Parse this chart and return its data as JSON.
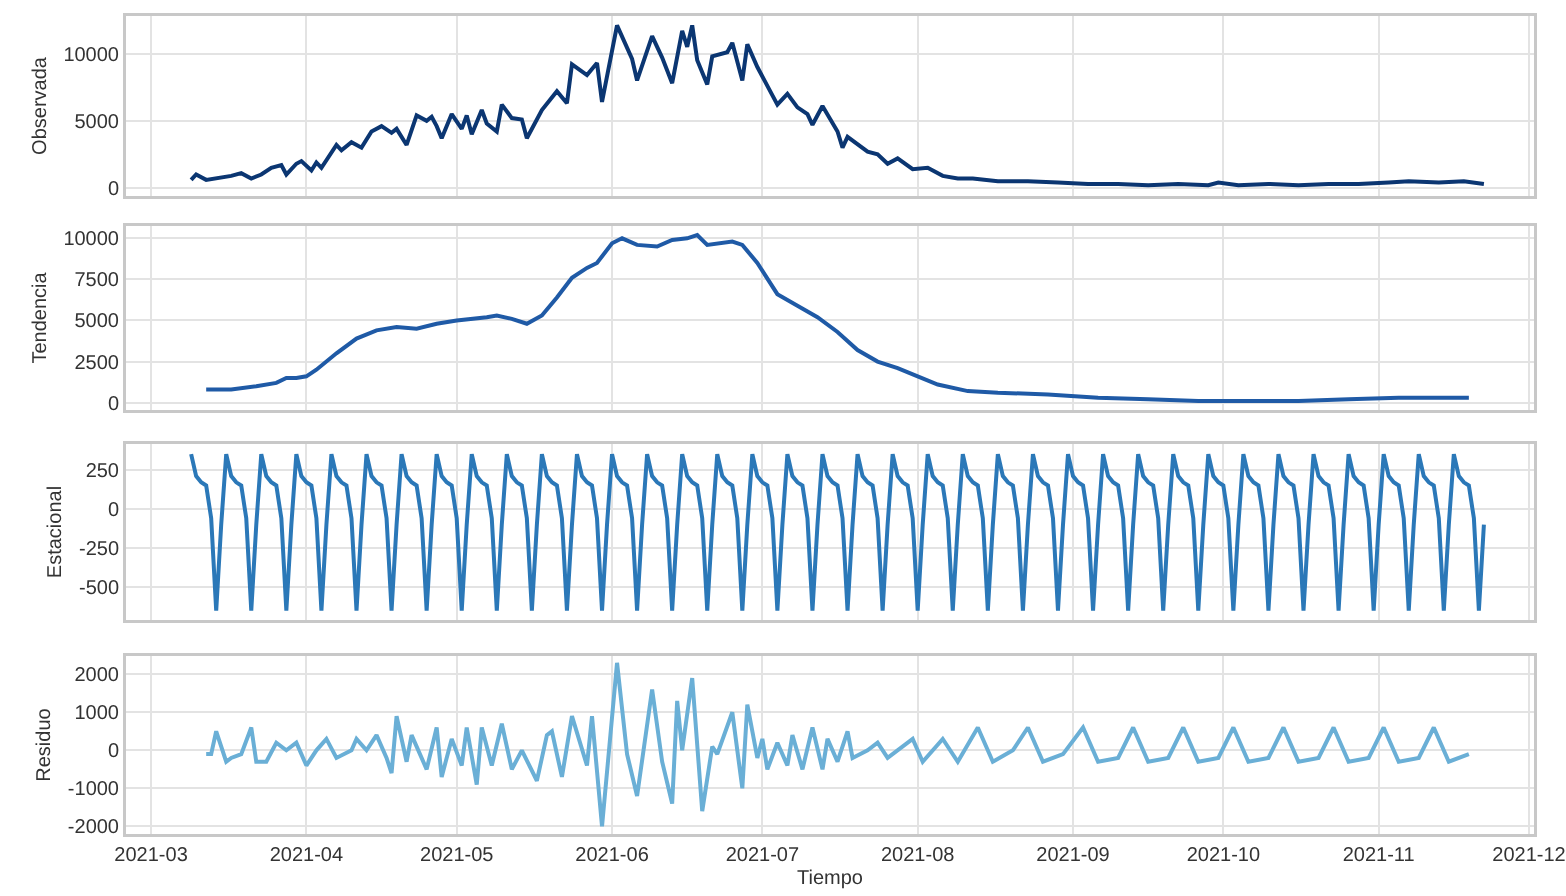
{
  "chart_data": [
    {
      "type": "line",
      "ylabel": "Observada",
      "xlim": [
        "2021-02-24",
        "2021-12-02"
      ],
      "xticks": [
        {
          "value": "2021-03-01",
          "label": null
        },
        {
          "value": "2021-04-01",
          "label": null
        },
        {
          "value": "2021-05-01",
          "label": null
        },
        {
          "value": "2021-06-01",
          "label": null
        },
        {
          "value": "2021-07-01",
          "label": null
        },
        {
          "value": "2021-08-01",
          "label": null
        },
        {
          "value": "2021-09-01",
          "label": null
        },
        {
          "value": "2021-10-01",
          "label": null
        },
        {
          "value": "2021-11-01",
          "label": null
        },
        {
          "value": "2021-12-01",
          "label": null
        }
      ],
      "ylim": [
        -600,
        12800
      ],
      "yticks": [
        0,
        5000,
        10000
      ],
      "grid": true,
      "tick_labels": "y",
      "series": [
        {
          "color": "#0b3672",
          "x": [
            "2021-03-09",
            "2021-03-10",
            "2021-03-12",
            "2021-03-17",
            "2021-03-19",
            "2021-03-21",
            "2021-03-23",
            "2021-03-25",
            "2021-03-27",
            "2021-03-28",
            "2021-03-30",
            "2021-03-31",
            "2021-04-02",
            "2021-04-03",
            "2021-04-04",
            "2021-04-07",
            "2021-04-08",
            "2021-04-10",
            "2021-04-12",
            "2021-04-14",
            "2021-04-16",
            "2021-04-18",
            "2021-04-19",
            "2021-04-21",
            "2021-04-23",
            "2021-04-25",
            "2021-04-26",
            "2021-04-27",
            "2021-04-28",
            "2021-04-30",
            "2021-05-02",
            "2021-05-03",
            "2021-05-04",
            "2021-05-06",
            "2021-05-07",
            "2021-05-09",
            "2021-05-10",
            "2021-05-12",
            "2021-05-14",
            "2021-05-15",
            "2021-05-18",
            "2021-05-21",
            "2021-05-23",
            "2021-05-24",
            "2021-05-27",
            "2021-05-29",
            "2021-05-30",
            "2021-06-02",
            "2021-06-05",
            "2021-06-06",
            "2021-06-09",
            "2021-06-11",
            "2021-06-13",
            "2021-06-15",
            "2021-06-16",
            "2021-06-17",
            "2021-06-18",
            "2021-06-20",
            "2021-06-21",
            "2021-06-24",
            "2021-06-25",
            "2021-06-27",
            "2021-06-28",
            "2021-06-30",
            "2021-07-02",
            "2021-07-04",
            "2021-07-06",
            "2021-07-08",
            "2021-07-10",
            "2021-07-11",
            "2021-07-13",
            "2021-07-16",
            "2021-07-17",
            "2021-07-18",
            "2021-07-22",
            "2021-07-24",
            "2021-07-26",
            "2021-07-28",
            "2021-07-31",
            "2021-08-03",
            "2021-08-06",
            "2021-08-09",
            "2021-08-12",
            "2021-08-17",
            "2021-08-23",
            "2021-08-29",
            "2021-09-04",
            "2021-09-10",
            "2021-09-16",
            "2021-09-22",
            "2021-09-28",
            "2021-09-30",
            "2021-10-04",
            "2021-10-10",
            "2021-10-16",
            "2021-10-22",
            "2021-10-28",
            "2021-11-03",
            "2021-11-07",
            "2021-11-13",
            "2021-11-18",
            "2021-11-22"
          ],
          "values": [
            600,
            1000,
            600,
            900,
            1100,
            700,
            1000,
            1500,
            1700,
            1000,
            1800,
            2000,
            1300,
            1900,
            1500,
            3200,
            2800,
            3400,
            3000,
            4200,
            4600,
            4100,
            4400,
            3200,
            5400,
            5000,
            5300,
            4600,
            3700,
            5500,
            4400,
            5400,
            4000,
            5800,
            4800,
            4200,
            6200,
            5200,
            5100,
            3700,
            5800,
            7200,
            6300,
            9200,
            8400,
            9300,
            6400,
            12100,
            9600,
            8000,
            11300,
            9700,
            7800,
            11700,
            10500,
            12100,
            9500,
            7700,
            9800,
            10100,
            10800,
            8000,
            10700,
            9000,
            7600,
            6200,
            7000,
            6000,
            5500,
            4700,
            6100,
            4200,
            3000,
            3800,
            2700,
            2500,
            1800,
            2200,
            1400,
            1500,
            900,
            700,
            700,
            500,
            500,
            400,
            300,
            300,
            200,
            300,
            200,
            400,
            200,
            300,
            200,
            300,
            300,
            400,
            500,
            400,
            500,
            300
          ]
        }
      ]
    },
    {
      "type": "line",
      "ylabel": "Tendencia",
      "xlim": [
        "2021-02-24",
        "2021-12-02"
      ],
      "xticks": [
        {
          "value": "2021-03-01",
          "label": null
        },
        {
          "value": "2021-04-01",
          "label": null
        },
        {
          "value": "2021-05-01",
          "label": null
        },
        {
          "value": "2021-06-01",
          "label": null
        },
        {
          "value": "2021-07-01",
          "label": null
        },
        {
          "value": "2021-08-01",
          "label": null
        },
        {
          "value": "2021-09-01",
          "label": null
        },
        {
          "value": "2021-10-01",
          "label": null
        },
        {
          "value": "2021-11-01",
          "label": null
        },
        {
          "value": "2021-12-01",
          "label": null
        }
      ],
      "ylim": [
        -450,
        10750
      ],
      "yticks": [
        0,
        2500,
        5000,
        7500,
        10000
      ],
      "grid": true,
      "tick_labels": "y",
      "series": [
        {
          "color": "#1f5aa6",
          "x": [
            "2021-03-12",
            "2021-03-17",
            "2021-03-22",
            "2021-03-26",
            "2021-03-28",
            "2021-03-30",
            "2021-04-01",
            "2021-04-03",
            "2021-04-07",
            "2021-04-11",
            "2021-04-15",
            "2021-04-19",
            "2021-04-23",
            "2021-04-27",
            "2021-05-01",
            "2021-05-07",
            "2021-05-09",
            "2021-05-12",
            "2021-05-15",
            "2021-05-18",
            "2021-05-21",
            "2021-05-24",
            "2021-05-27",
            "2021-05-29",
            "2021-06-01",
            "2021-06-03",
            "2021-06-06",
            "2021-06-10",
            "2021-06-13",
            "2021-06-16",
            "2021-06-18",
            "2021-06-20",
            "2021-06-25",
            "2021-06-27",
            "2021-06-30",
            "2021-07-04",
            "2021-07-08",
            "2021-07-12",
            "2021-07-16",
            "2021-07-20",
            "2021-07-24",
            "2021-07-28",
            "2021-08-01",
            "2021-08-05",
            "2021-08-11",
            "2021-08-17",
            "2021-08-27",
            "2021-09-06",
            "2021-09-16",
            "2021-09-26",
            "2021-10-06",
            "2021-10-16",
            "2021-10-26",
            "2021-11-05",
            "2021-11-09",
            "2021-11-13",
            "2021-11-19"
          ],
          "values": [
            800,
            800,
            1000,
            1200,
            1500,
            1500,
            1600,
            2000,
            3000,
            3900,
            4400,
            4600,
            4500,
            4800,
            5000,
            5200,
            5300,
            5100,
            4800,
            5300,
            6400,
            7600,
            8200,
            8500,
            9700,
            10000,
            9600,
            9500,
            9900,
            10000,
            10200,
            9600,
            9800,
            9600,
            8500,
            6600,
            5900,
            5200,
            4300,
            3200,
            2500,
            2100,
            1600,
            1100,
            700,
            600,
            500,
            300,
            200,
            100,
            100,
            100,
            200,
            300,
            300,
            300,
            300
          ]
        }
      ]
    },
    {
      "type": "line",
      "ylabel": "Estacional",
      "xlim": [
        "2021-02-24",
        "2021-12-02"
      ],
      "xticks": [
        {
          "value": "2021-03-01",
          "label": null
        },
        {
          "value": "2021-04-01",
          "label": null
        },
        {
          "value": "2021-05-01",
          "label": null
        },
        {
          "value": "2021-06-01",
          "label": null
        },
        {
          "value": "2021-07-01",
          "label": null
        },
        {
          "value": "2021-08-01",
          "label": null
        },
        {
          "value": "2021-09-01",
          "label": null
        },
        {
          "value": "2021-10-01",
          "label": null
        },
        {
          "value": "2021-11-01",
          "label": null
        },
        {
          "value": "2021-12-01",
          "label": null
        }
      ],
      "ylim": [
        -710,
        415
      ],
      "yticks": [
        -500,
        -250,
        0,
        250
      ],
      "grid": true,
      "tick_labels": "y",
      "series": [
        {
          "color": "#2b78b8",
          "x": [
            "2021-03-09",
            "2021-03-10",
            "2021-03-11",
            "2021-03-12",
            "2021-03-13",
            "2021-03-14",
            "2021-03-15",
            "2021-03-16",
            "2021-03-17",
            "2021-03-18",
            "2021-03-19",
            "2021-03-20",
            "2021-03-21",
            "2021-03-22",
            "2021-03-23",
            "2021-03-24",
            "2021-03-25",
            "2021-03-26",
            "2021-03-27",
            "2021-03-28",
            "2021-03-29",
            "2021-03-30",
            "2021-03-31",
            "2021-04-01",
            "2021-04-02",
            "2021-04-03",
            "2021-04-04",
            "2021-04-05",
            "2021-04-06",
            "2021-04-07",
            "2021-04-08",
            "2021-04-09",
            "2021-04-10",
            "2021-04-11",
            "2021-04-12",
            "2021-04-13",
            "2021-04-14",
            "2021-04-15",
            "2021-04-16",
            "2021-04-17",
            "2021-04-18",
            "2021-04-19",
            "2021-04-20",
            "2021-04-21",
            "2021-04-22",
            "2021-04-23",
            "2021-04-24",
            "2021-04-25",
            "2021-04-26",
            "2021-04-27",
            "2021-04-28",
            "2021-04-29",
            "2021-04-30",
            "2021-05-01",
            "2021-05-02",
            "2021-05-03",
            "2021-05-04",
            "2021-05-05",
            "2021-05-06",
            "2021-05-07",
            "2021-05-08",
            "2021-05-09",
            "2021-05-10",
            "2021-05-11",
            "2021-05-12",
            "2021-05-13",
            "2021-05-14",
            "2021-05-15",
            "2021-05-16",
            "2021-05-17",
            "2021-05-18",
            "2021-05-19",
            "2021-05-20",
            "2021-05-21",
            "2021-05-22",
            "2021-05-23",
            "2021-05-24",
            "2021-05-25",
            "2021-05-26",
            "2021-05-27",
            "2021-05-28",
            "2021-05-29",
            "2021-05-30",
            "2021-05-31",
            "2021-06-01",
            "2021-06-02",
            "2021-06-03",
            "2021-06-04",
            "2021-06-05",
            "2021-06-06",
            "2021-06-07",
            "2021-06-08",
            "2021-06-09",
            "2021-06-10",
            "2021-06-11",
            "2021-06-12",
            "2021-06-13",
            "2021-06-14",
            "2021-06-15",
            "2021-06-16",
            "2021-06-17",
            "2021-06-18",
            "2021-06-19",
            "2021-06-20",
            "2021-06-21",
            "2021-06-22",
            "2021-06-23",
            "2021-06-24",
            "2021-06-25",
            "2021-06-26",
            "2021-06-27",
            "2021-06-28",
            "2021-06-29",
            "2021-06-30",
            "2021-07-01",
            "2021-07-02",
            "2021-07-03",
            "2021-07-04",
            "2021-07-05",
            "2021-07-06",
            "2021-07-07",
            "2021-07-08",
            "2021-07-09",
            "2021-07-10",
            "2021-07-11",
            "2021-07-12",
            "2021-07-13",
            "2021-07-14",
            "2021-07-15",
            "2021-07-16",
            "2021-07-17",
            "2021-07-18",
            "2021-07-19",
            "2021-07-20",
            "2021-07-21",
            "2021-07-22",
            "2021-07-23",
            "2021-07-24",
            "2021-07-25",
            "2021-07-26",
            "2021-07-27",
            "2021-07-28",
            "2021-07-29",
            "2021-07-30",
            "2021-07-31",
            "2021-08-01",
            "2021-08-02",
            "2021-08-03",
            "2021-08-04",
            "2021-08-05",
            "2021-08-06",
            "2021-08-07",
            "2021-08-08",
            "2021-08-09",
            "2021-08-10",
            "2021-08-11",
            "2021-08-12",
            "2021-08-13",
            "2021-08-14",
            "2021-08-15",
            "2021-08-16",
            "2021-08-17",
            "2021-08-18",
            "2021-08-19",
            "2021-08-20",
            "2021-08-21",
            "2021-08-22",
            "2021-08-23",
            "2021-08-24",
            "2021-08-25",
            "2021-08-26",
            "2021-08-27",
            "2021-08-28",
            "2021-08-29",
            "2021-08-30",
            "2021-08-31",
            "2021-09-01",
            "2021-09-02",
            "2021-09-03",
            "2021-09-04",
            "2021-09-05",
            "2021-09-06",
            "2021-09-07",
            "2021-09-08",
            "2021-09-09",
            "2021-09-10",
            "2021-09-11",
            "2021-09-12",
            "2021-09-13",
            "2021-09-14",
            "2021-09-15",
            "2021-09-16",
            "2021-09-17",
            "2021-09-18",
            "2021-09-19",
            "2021-09-20",
            "2021-09-21",
            "2021-09-22",
            "2021-09-23",
            "2021-09-24",
            "2021-09-25",
            "2021-09-26",
            "2021-09-27",
            "2021-09-28",
            "2021-09-29",
            "2021-09-30",
            "2021-10-01",
            "2021-10-02",
            "2021-10-03",
            "2021-10-04",
            "2021-10-05",
            "2021-10-06",
            "2021-10-07",
            "2021-10-08",
            "2021-10-09",
            "2021-10-10",
            "2021-10-11",
            "2021-10-12",
            "2021-10-13",
            "2021-10-14",
            "2021-10-15",
            "2021-10-16",
            "2021-10-17",
            "2021-10-18",
            "2021-10-19",
            "2021-10-20",
            "2021-10-21",
            "2021-10-22",
            "2021-10-23",
            "2021-10-24",
            "2021-10-25",
            "2021-10-26",
            "2021-10-27",
            "2021-10-28",
            "2021-10-29",
            "2021-10-30",
            "2021-10-31",
            "2021-11-01",
            "2021-11-02",
            "2021-11-03",
            "2021-11-04",
            "2021-11-05",
            "2021-11-06",
            "2021-11-07",
            "2021-11-08",
            "2021-11-09",
            "2021-11-10",
            "2021-11-11",
            "2021-11-12",
            "2021-11-13",
            "2021-11-14",
            "2021-11-15",
            "2021-11-16",
            "2021-11-17",
            "2021-11-18",
            "2021-11-19",
            "2021-11-20",
            "2021-11-21",
            "2021-11-22"
          ],
          "values": [
            350,
            210,
            170,
            150,
            -60,
            -650,
            -100,
            350,
            210,
            170,
            150,
            -60,
            -650,
            -100,
            350,
            210,
            170,
            150,
            -60,
            -650,
            -100,
            350,
            210,
            170,
            150,
            -60,
            -650,
            -100,
            350,
            210,
            170,
            150,
            -60,
            -650,
            -100,
            350,
            210,
            170,
            150,
            -60,
            -650,
            -100,
            350,
            210,
            170,
            150,
            -60,
            -650,
            -100,
            350,
            210,
            170,
            150,
            -60,
            -650,
            -100,
            350,
            210,
            170,
            150,
            -60,
            -650,
            -100,
            350,
            210,
            170,
            150,
            -60,
            -650,
            -100,
            350,
            210,
            170,
            150,
            -60,
            -650,
            -100,
            350,
            210,
            170,
            150,
            -60,
            -650,
            -100,
            350,
            210,
            170,
            150,
            -60,
            -650,
            -100,
            350,
            210,
            170,
            150,
            -60,
            -650,
            -100,
            350,
            210,
            170,
            150,
            -60,
            -650,
            -100,
            350,
            210,
            170,
            150,
            -60,
            -650,
            -100,
            350,
            210,
            170,
            150,
            -60,
            -650,
            -100,
            350,
            210,
            170,
            150,
            -60,
            -650,
            -100,
            350,
            210,
            170,
            150,
            -60,
            -650,
            -100,
            350,
            210,
            170,
            150,
            -60,
            -650,
            -100,
            350,
            210,
            170,
            150,
            -60,
            -650,
            -100,
            350,
            210,
            170,
            150,
            -60,
            -650,
            -100,
            350,
            210,
            170,
            150,
            -60,
            -650,
            -100,
            350,
            210,
            170,
            150,
            -60,
            -650,
            -100,
            350,
            210,
            170,
            150,
            -60,
            -650,
            -100,
            350,
            210,
            170,
            150,
            -60,
            -650,
            -100,
            350,
            210,
            170,
            150,
            -60,
            -650,
            -100,
            350,
            210,
            170,
            150,
            -60,
            -650,
            -100,
            350,
            210,
            170,
            150,
            -60,
            -650,
            -100,
            350,
            210,
            170,
            150,
            -60,
            -650,
            -100,
            350,
            210,
            170,
            150,
            -60,
            -650,
            -100,
            350,
            210,
            170,
            150,
            -60,
            -650,
            -100,
            350,
            210,
            170,
            150,
            -60,
            -650,
            -100,
            350,
            210,
            170,
            150,
            -60,
            -650,
            -100,
            350,
            210,
            170,
            150,
            -60,
            -650,
            -100,
            350,
            210,
            170,
            150,
            -60,
            -650,
            -100,
            350,
            210,
            170,
            150,
            -60,
            -650,
            -100
          ]
        }
      ]
    },
    {
      "type": "line",
      "ylabel": "Residuo",
      "xlabel": "Tiempo",
      "xlim": [
        "2021-02-24",
        "2021-12-02"
      ],
      "xticks": [
        {
          "value": "2021-03-01",
          "label": "2021-03"
        },
        {
          "value": "2021-04-01",
          "label": "2021-04"
        },
        {
          "value": "2021-05-01",
          "label": "2021-05"
        },
        {
          "value": "2021-06-01",
          "label": "2021-06"
        },
        {
          "value": "2021-07-01",
          "label": "2021-07"
        },
        {
          "value": "2021-08-01",
          "label": "2021-08"
        },
        {
          "value": "2021-09-01",
          "label": "2021-09"
        },
        {
          "value": "2021-10-01",
          "label": "2021-10"
        },
        {
          "value": "2021-11-01",
          "label": "2021-11"
        },
        {
          "value": "2021-12-01",
          "label": "2021-12"
        }
      ],
      "ylim": [
        -2200,
        2480
      ],
      "yticks": [
        -2000,
        -1000,
        0,
        1000,
        2000
      ],
      "grid": true,
      "series": [
        {
          "color": "#6aafd6",
          "x": [
            "2021-03-12",
            "2021-03-13",
            "2021-03-14",
            "2021-03-16",
            "2021-03-17",
            "2021-03-19",
            "2021-03-21",
            "2021-03-22",
            "2021-03-24",
            "2021-03-26",
            "2021-03-28",
            "2021-03-30",
            "2021-04-01",
            "2021-04-03",
            "2021-04-05",
            "2021-04-07",
            "2021-04-10",
            "2021-04-11",
            "2021-04-13",
            "2021-04-15",
            "2021-04-17",
            "2021-04-18",
            "2021-04-19",
            "2021-04-21",
            "2021-04-22",
            "2021-04-25",
            "2021-04-27",
            "2021-04-28",
            "2021-04-30",
            "2021-05-02",
            "2021-05-03",
            "2021-05-05",
            "2021-05-06",
            "2021-05-08",
            "2021-05-10",
            "2021-05-12",
            "2021-05-14",
            "2021-05-17",
            "2021-05-19",
            "2021-05-20",
            "2021-05-22",
            "2021-05-24",
            "2021-05-27",
            "2021-05-28",
            "2021-05-30",
            "2021-06-02",
            "2021-06-04",
            "2021-06-06",
            "2021-06-09",
            "2021-06-11",
            "2021-06-13",
            "2021-06-14",
            "2021-06-15",
            "2021-06-17",
            "2021-06-19",
            "2021-06-21",
            "2021-06-22",
            "2021-06-25",
            "2021-06-27",
            "2021-06-28",
            "2021-06-30",
            "2021-07-01",
            "2021-07-02",
            "2021-07-04",
            "2021-07-06",
            "2021-07-07",
            "2021-07-09",
            "2021-07-11",
            "2021-07-13",
            "2021-07-14",
            "2021-07-16",
            "2021-07-18",
            "2021-07-19",
            "2021-07-22",
            "2021-07-24",
            "2021-07-26",
            "2021-07-31",
            "2021-08-02",
            "2021-08-06",
            "2021-08-09",
            "2021-08-13",
            "2021-08-16",
            "2021-08-20",
            "2021-08-23",
            "2021-08-26",
            "2021-08-30",
            "2021-09-03",
            "2021-09-06",
            "2021-09-10",
            "2021-09-13",
            "2021-09-16",
            "2021-09-20",
            "2021-09-23",
            "2021-09-26",
            "2021-09-30",
            "2021-10-03",
            "2021-10-06",
            "2021-10-10",
            "2021-10-13",
            "2021-10-16",
            "2021-10-20",
            "2021-10-23",
            "2021-10-26",
            "2021-10-30",
            "2021-11-02",
            "2021-11-05",
            "2021-11-09",
            "2021-11-12",
            "2021-11-15",
            "2021-11-19"
          ],
          "values": [
            -100,
            -100,
            500,
            -300,
            -200,
            -100,
            600,
            -300,
            -300,
            200,
            0,
            200,
            -400,
            0,
            300,
            -200,
            0,
            300,
            0,
            400,
            -200,
            -600,
            900,
            -300,
            400,
            -500,
            600,
            -700,
            300,
            -400,
            600,
            -900,
            600,
            -400,
            700,
            -500,
            0,
            -800,
            400,
            500,
            -700,
            900,
            -400,
            900,
            -2000,
            2300,
            -100,
            -1200,
            1600,
            -300,
            -1400,
            1300,
            0,
            1900,
            -1600,
            100,
            -100,
            1000,
            -1000,
            1200,
            -200,
            300,
            -500,
            200,
            -400,
            400,
            -500,
            600,
            -500,
            300,
            -300,
            500,
            -200,
            0,
            200,
            -200,
            300,
            -300,
            300,
            -300,
            600,
            -300,
            0,
            600,
            -300,
            -100,
            600,
            -300,
            -200,
            600,
            -300,
            -200,
            600,
            -300,
            -200,
            600,
            -300,
            -200,
            600,
            -300,
            -200,
            600,
            -300,
            -200,
            600,
            -300,
            -200,
            600,
            -300,
            -100
          ]
        }
      ]
    }
  ]
}
